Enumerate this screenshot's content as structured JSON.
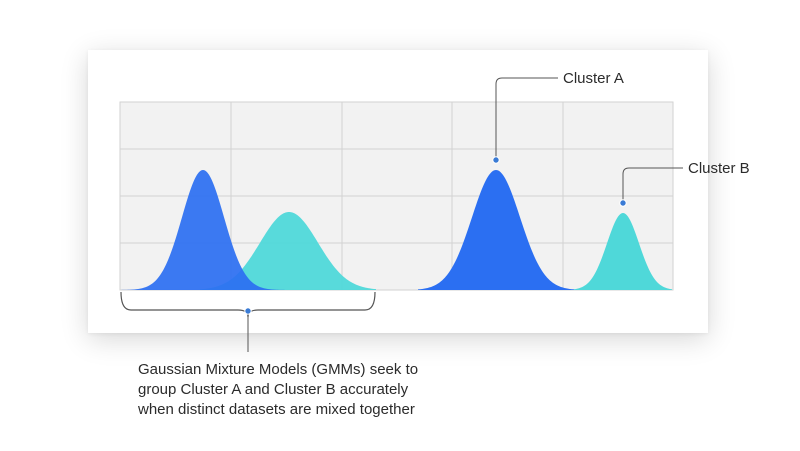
{
  "labels": {
    "cluster_a": "Cluster A",
    "cluster_b": "Cluster B"
  },
  "caption": {
    "lines": [
      "Gaussian Mixture Models (GMMs) seek to",
      "group Cluster A and Cluster B accurately",
      "when distinct datasets are mixed together"
    ]
  },
  "colors": {
    "cluster_a": "#2b6ff2",
    "cluster_b": "#4fd8d9",
    "grid_background": "#f2f2f2",
    "grid_lines": "#d2d2d2",
    "leader_lines": "#555555",
    "marker": "#3a7bd5",
    "text": "#2b2b2b"
  },
  "icons": {
    "marker": "dot-marker-icon",
    "brace": "curly-bracket-icon"
  }
}
